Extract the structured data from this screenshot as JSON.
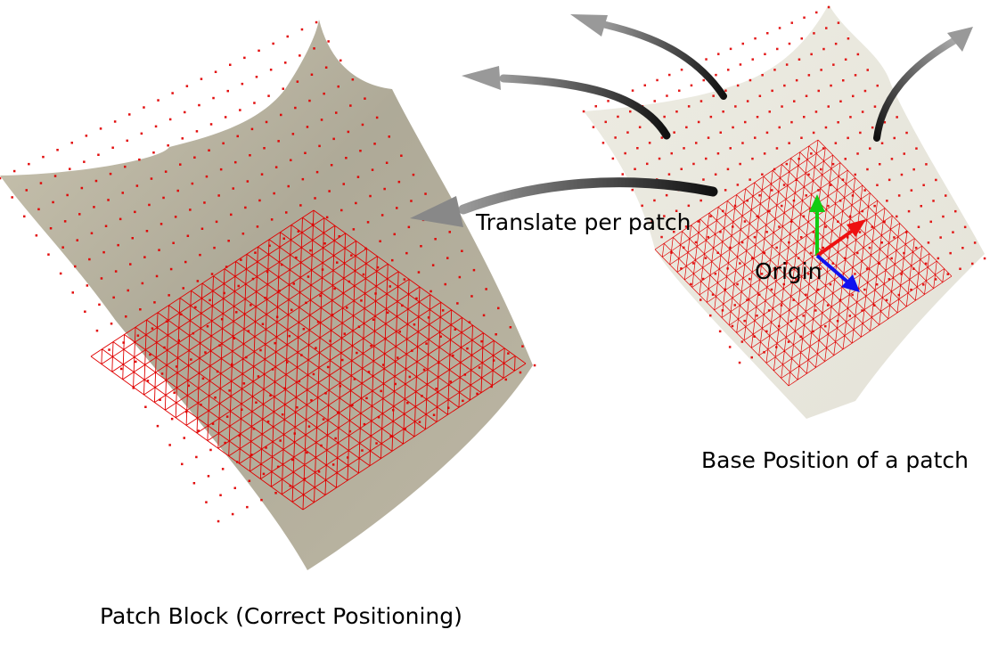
{
  "labels": {
    "translate": "Translate per patch",
    "origin": "Origin",
    "patch_block": "Patch Block (Correct Positioning)",
    "base_position": "Base Position of a patch"
  },
  "colors": {
    "grid": "#e00000",
    "point": "#e00000",
    "terrain": "#b3ad9a",
    "axis_x": "#ee1111",
    "axis_y": "#11cc11",
    "axis_z": "#1111ee",
    "arrow": "#333333"
  },
  "icons": [
    "curved-arrow-icon",
    "axis-gizmo-icon"
  ]
}
